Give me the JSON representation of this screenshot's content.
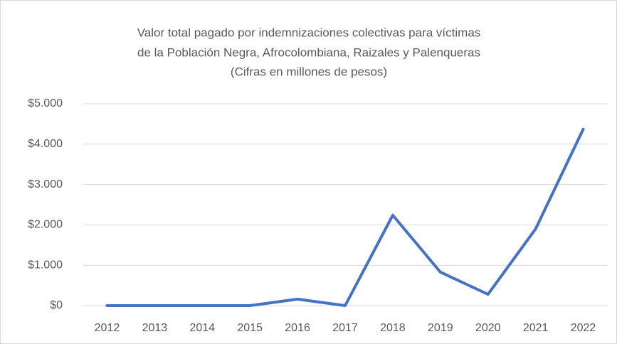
{
  "chart_data": {
    "type": "line",
    "title": [
      "Valor total pagado por indemnizaciones colectivas para víctimas",
      "de la Población Negra, Afrocolombiana, Raizales y Palenqueras",
      "(Cifras en millones de pesos)"
    ],
    "categories": [
      "2012",
      "2013",
      "2014",
      "2015",
      "2016",
      "2017",
      "2018",
      "2019",
      "2020",
      "2021",
      "2022"
    ],
    "series": [
      {
        "color": "#4472c4",
        "values": [
          0,
          0,
          0,
          0,
          160,
          0,
          2240,
          830,
          280,
          1900,
          4370
        ]
      }
    ],
    "ylim": [
      0,
      5000
    ],
    "yticks": [
      {
        "value": 0,
        "label": "$0"
      },
      {
        "value": 1000,
        "label": "$1.000"
      },
      {
        "value": 2000,
        "label": "$2.000"
      },
      {
        "value": 3000,
        "label": "$3.000"
      },
      {
        "value": 4000,
        "label": "$4.000"
      },
      {
        "value": 5000,
        "label": "$5.000"
      }
    ],
    "grid": true
  }
}
